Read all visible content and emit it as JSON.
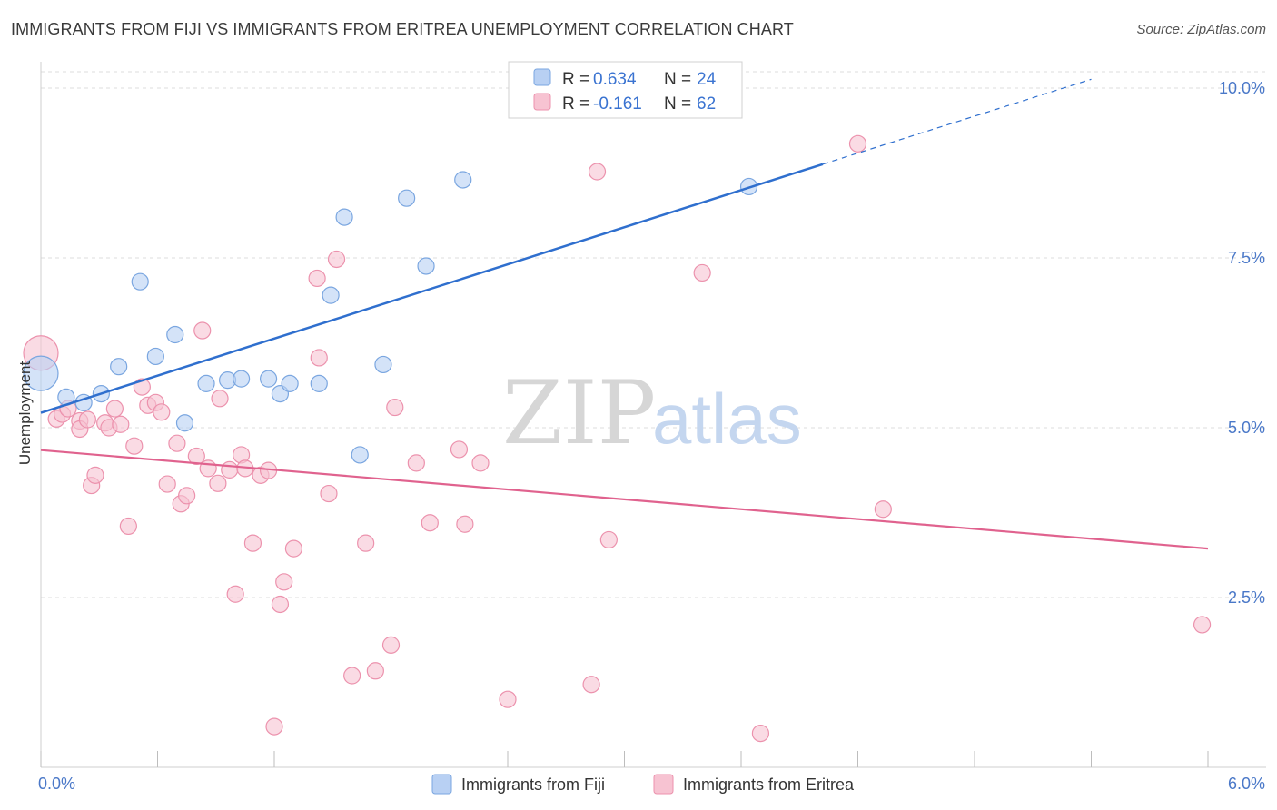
{
  "header": {
    "title": "IMMIGRANTS FROM FIJI VS IMMIGRANTS FROM ERITREA UNEMPLOYMENT CORRELATION CHART",
    "source": "Source: ZipAtlas.com"
  },
  "watermark": {
    "zip": "ZIP",
    "atlas": "atlas"
  },
  "colors": {
    "fiji_fill": "#b8d0f3",
    "fiji_stroke": "#7aa6e0",
    "fiji_line": "#2f6fce",
    "eritrea_fill": "#f7c3d2",
    "eritrea_stroke": "#ec92ad",
    "eritrea_line": "#e0628e",
    "grid": "#dcdcdc",
    "tick_text": "#4a78c8"
  },
  "legend": {
    "rows": [
      {
        "r_label": "R =",
        "r_value": "0.634",
        "n_label": "N =",
        "n_value": "24"
      },
      {
        "r_label": "R =",
        "r_value": "-0.161",
        "n_label": "N =",
        "n_value": "62"
      }
    ]
  },
  "chart_data": {
    "type": "scatter",
    "title": "IMMIGRANTS FROM FIJI VS IMMIGRANTS FROM ERITREA UNEMPLOYMENT CORRELATION CHART",
    "xlabel": "",
    "ylabel": "Unemployment",
    "xlim": [
      0,
      6.0
    ],
    "ylim": [
      0,
      10.5
    ],
    "x_ticks_labels": [
      "0.0%",
      "6.0%"
    ],
    "y_ticks": [
      2.5,
      5.0,
      7.5,
      10.0
    ],
    "y_ticks_labels": [
      "2.5%",
      "5.0%",
      "7.5%",
      "10.0%"
    ],
    "grid": true,
    "legend_position": "top-center",
    "series": [
      {
        "name": "Immigrants from Fiji",
        "color": "#7aa6e0",
        "points": [
          [
            0.0,
            5.8,
            1
          ],
          [
            0.13,
            5.45,
            0
          ],
          [
            0.22,
            5.37,
            0
          ],
          [
            0.31,
            5.5,
            0
          ],
          [
            0.4,
            5.9,
            0
          ],
          [
            0.51,
            7.15,
            0
          ],
          [
            0.59,
            6.05,
            0
          ],
          [
            0.69,
            6.37,
            0
          ],
          [
            0.74,
            5.07,
            0
          ],
          [
            0.85,
            5.65,
            0
          ],
          [
            0.96,
            5.7,
            0
          ],
          [
            1.03,
            5.72,
            0
          ],
          [
            1.17,
            5.72,
            0
          ],
          [
            1.23,
            5.5,
            0
          ],
          [
            1.28,
            5.65,
            0
          ],
          [
            1.43,
            5.65,
            0
          ],
          [
            1.49,
            6.95,
            0
          ],
          [
            1.56,
            8.1,
            0
          ],
          [
            1.64,
            4.6,
            0
          ],
          [
            1.76,
            5.93,
            0
          ],
          [
            1.88,
            8.38,
            0
          ],
          [
            1.98,
            7.38,
            0
          ],
          [
            2.17,
            8.65,
            0
          ],
          [
            3.64,
            8.55,
            0
          ]
        ],
        "trend": {
          "x": [
            0.0,
            4.02
          ],
          "y": [
            5.22,
            8.88
          ],
          "dashed_extension": {
            "x": [
              4.02,
              5.4
            ],
            "y": [
              8.88,
              10.13
            ]
          }
        }
      },
      {
        "name": "Immigrants from Eritrea",
        "color": "#ec92ad",
        "points": [
          [
            0.0,
            6.1,
            1
          ],
          [
            0.08,
            5.13,
            0
          ],
          [
            0.11,
            5.2,
            0
          ],
          [
            0.14,
            5.28,
            0
          ],
          [
            0.2,
            5.1,
            0
          ],
          [
            0.2,
            4.98,
            0
          ],
          [
            0.24,
            5.12,
            0
          ],
          [
            0.26,
            4.15,
            0
          ],
          [
            0.28,
            4.3,
            0
          ],
          [
            0.33,
            5.07,
            0
          ],
          [
            0.35,
            5.0,
            0
          ],
          [
            0.38,
            5.28,
            0
          ],
          [
            0.41,
            5.05,
            0
          ],
          [
            0.45,
            3.55,
            0
          ],
          [
            0.48,
            4.73,
            0
          ],
          [
            0.52,
            5.6,
            0
          ],
          [
            0.55,
            5.33,
            0
          ],
          [
            0.59,
            5.37,
            0
          ],
          [
            0.62,
            5.23,
            0
          ],
          [
            0.65,
            4.17,
            0
          ],
          [
            0.7,
            4.77,
            0
          ],
          [
            0.72,
            3.88,
            0
          ],
          [
            0.75,
            4.0,
            0
          ],
          [
            0.8,
            4.58,
            0
          ],
          [
            0.83,
            6.43,
            0
          ],
          [
            0.86,
            4.4,
            0
          ],
          [
            0.91,
            4.18,
            0
          ],
          [
            0.92,
            5.43,
            0
          ],
          [
            0.97,
            4.38,
            0
          ],
          [
            1.0,
            2.55,
            0
          ],
          [
            1.03,
            4.6,
            0
          ],
          [
            1.05,
            4.4,
            0
          ],
          [
            1.09,
            3.3,
            0
          ],
          [
            1.13,
            4.3,
            0
          ],
          [
            1.17,
            4.37,
            0
          ],
          [
            1.2,
            0.6,
            0
          ],
          [
            1.23,
            2.4,
            0
          ],
          [
            1.25,
            2.73,
            0
          ],
          [
            1.3,
            3.22,
            0
          ],
          [
            1.42,
            7.2,
            0
          ],
          [
            1.43,
            6.03,
            0
          ],
          [
            1.48,
            4.03,
            0
          ],
          [
            1.52,
            7.48,
            0
          ],
          [
            1.6,
            1.35,
            0
          ],
          [
            1.67,
            3.3,
            0
          ],
          [
            1.72,
            1.42,
            0
          ],
          [
            1.8,
            1.8,
            0
          ],
          [
            1.82,
            5.3,
            0
          ],
          [
            1.93,
            4.48,
            0
          ],
          [
            2.0,
            3.6,
            0
          ],
          [
            2.15,
            4.68,
            0
          ],
          [
            2.18,
            3.58,
            0
          ],
          [
            2.26,
            4.48,
            0
          ],
          [
            2.4,
            1.0,
            0
          ],
          [
            2.83,
            1.22,
            0
          ],
          [
            2.86,
            8.77,
            0
          ],
          [
            2.92,
            3.35,
            0
          ],
          [
            3.4,
            7.28,
            0
          ],
          [
            3.7,
            0.5,
            0
          ],
          [
            4.2,
            9.18,
            0
          ],
          [
            4.33,
            3.8,
            0
          ],
          [
            5.97,
            2.1,
            0
          ]
        ],
        "trend": {
          "x": [
            0.0,
            6.0
          ],
          "y": [
            4.67,
            3.22
          ]
        }
      }
    ]
  },
  "bottom_legend": {
    "items": [
      {
        "label": "Immigrants from Fiji"
      },
      {
        "label": "Immigrants from Eritrea"
      }
    ]
  }
}
